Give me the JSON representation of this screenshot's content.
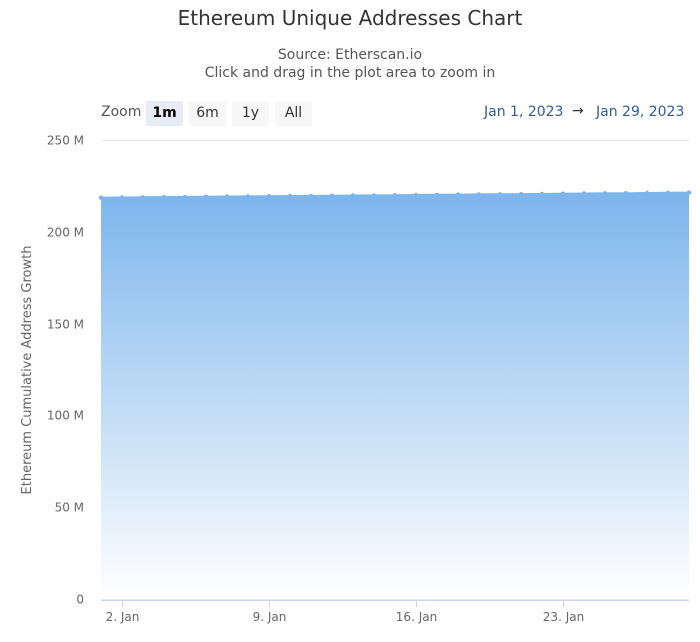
{
  "header": {
    "title": "Ethereum Unique Addresses Chart",
    "source": "Source: Etherscan.io",
    "hint": "Click and drag in the plot area to zoom in"
  },
  "zoom": {
    "label": "Zoom",
    "buttons": [
      "1m",
      "6m",
      "1y",
      "All"
    ],
    "active": "1m"
  },
  "range": {
    "from": "Jan 1, 2023",
    "arrow": "→",
    "to": "Jan 29, 2023"
  },
  "colors": {
    "line": "#7cb5ec",
    "area_top": "#7cb5ec",
    "area_bottom": "#ffffff",
    "grid": "#e6e6e6"
  },
  "chart_data": {
    "type": "area",
    "title": "Ethereum Unique Addresses Chart",
    "subtitle": "Source: Etherscan.io",
    "ylabel": "Ethereum Cumulative Address Growth",
    "xlabel": "",
    "ylim": [
      0,
      250000000
    ],
    "yticks": [
      0,
      50000000,
      100000000,
      150000000,
      200000000,
      250000000
    ],
    "ytick_labels": [
      "0",
      "50 M",
      "100 M",
      "150 M",
      "200 M",
      "250 M"
    ],
    "xticks": [
      "2023-01-02",
      "2023-01-09",
      "2023-01-16",
      "2023-01-23"
    ],
    "xtick_labels": [
      "2. Jan",
      "9. Jan",
      "16. Jan",
      "23. Jan"
    ],
    "xlim": [
      "2023-01-01",
      "2023-01-29"
    ],
    "grid": true,
    "x": [
      "2023-01-01",
      "2023-01-02",
      "2023-01-03",
      "2023-01-04",
      "2023-01-05",
      "2023-01-06",
      "2023-01-07",
      "2023-01-08",
      "2023-01-09",
      "2023-01-10",
      "2023-01-11",
      "2023-01-12",
      "2023-01-13",
      "2023-01-14",
      "2023-01-15",
      "2023-01-16",
      "2023-01-17",
      "2023-01-18",
      "2023-01-19",
      "2023-01-20",
      "2023-01-21",
      "2023-01-22",
      "2023-01-23",
      "2023-01-24",
      "2023-01-25",
      "2023-01-26",
      "2023-01-27",
      "2023-01-28",
      "2023-01-29"
    ],
    "y": [
      218600000,
      218700000,
      218800000,
      218900000,
      219000000,
      219100000,
      219200000,
      219300000,
      219400000,
      219500000,
      219550000,
      219650000,
      219750000,
      219850000,
      219950000,
      220050000,
      220150000,
      220250000,
      220350000,
      220450000,
      220550000,
      220650000,
      220750000,
      220850000,
      220950000,
      221050000,
      221150000,
      221250000,
      221350000
    ]
  }
}
